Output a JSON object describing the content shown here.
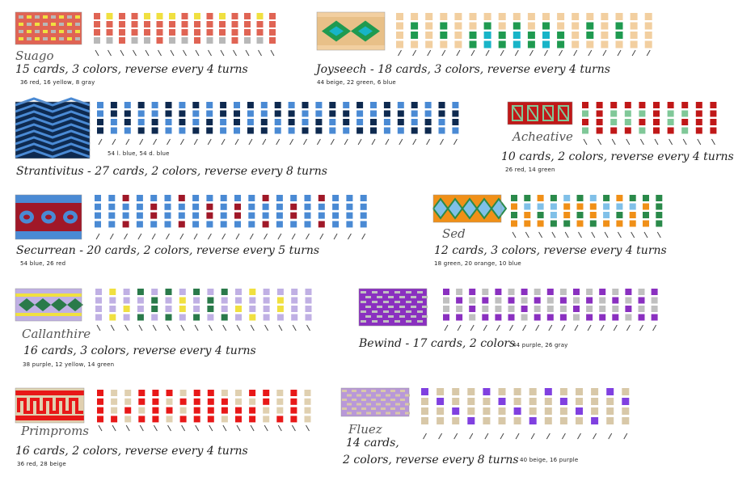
{
  "patterns": [
    {
      "id": "suago",
      "name": "Suago",
      "title_line": "15 cards, 3 colors, reverse every 4 turns",
      "counts": "36 red, 16 yellow, 8 gray",
      "colors": [
        "#e06454",
        "#f0e040",
        "#b8b8b8"
      ],
      "cards": [
        "0002",
        "1002",
        "0000",
        "0002",
        "1002",
        "1000",
        "1002",
        "0002",
        "1000",
        "0002",
        "1002",
        "0000",
        "0002",
        "1002",
        "0000"
      ],
      "threading": "\\\\\\\\\\\\\\\\\\\\\\\\\\\\\\"
    },
    {
      "id": "joyseech",
      "name": "Joyseech",
      "title_line": "Joyseech - 18 cards, 3 colors, reverse every 4 turns",
      "counts": "44 beige, 22 green, 6 blue",
      "colors": [
        "#f2cfa0",
        "#1f9a50",
        "#18b4c8"
      ],
      "cards": [
        "0000",
        "0110",
        "0000",
        "0110",
        "0000",
        "0011",
        "0122",
        "0011",
        "0122",
        "0011",
        "0122",
        "0011",
        "0000",
        "0110",
        "0000",
        "0110",
        "0000",
        "0000"
      ],
      "threading": "//////////////////"
    },
    {
      "id": "strantivitus",
      "name": "Strantivitus",
      "title_line": "Strantivitus - 27 cards, 2 colors, reverse every 8 turns",
      "counts": "54 l. blue, 54 d. blue",
      "colors": [
        "#4a8ad4",
        "#0e2a50"
      ],
      "cards": [
        "0011",
        "1100",
        "0110",
        "1001",
        "0011",
        "1100",
        "0110",
        "1001",
        "0011",
        "1100",
        "0110",
        "1001",
        "0011",
        "1100",
        "0110",
        "1001",
        "0011",
        "1100",
        "0110",
        "1001",
        "0011",
        "1100",
        "0110",
        "1001",
        "0011",
        "1100",
        "0110"
      ],
      "threading": "///////////////////////////"
    },
    {
      "id": "acheative",
      "name": "Acheative",
      "title_line": "10 cards, 2 colors, reverse every 4 turns",
      "counts": "26 red, 14 green",
      "colors": [
        "#c01818",
        "#80c898"
      ],
      "cards": [
        "0101",
        "0000",
        "0110",
        "0110",
        "0101",
        "0000",
        "0110",
        "0101",
        "0000",
        "0000"
      ],
      "threading": "\\\\\\\\\\\\\\\\\\\\"
    },
    {
      "id": "securrean",
      "name": "Securrean",
      "title_line": "Securrean - 20 cards, 2 colors, reverse every 5 turns",
      "counts": "54 blue, 26 red",
      "colors": [
        "#4a8ad4",
        "#a01828"
      ],
      "cards": [
        "0000",
        "0000",
        "1001",
        "0000",
        "0110",
        "0000",
        "1001",
        "0000",
        "0110",
        "0000",
        "0110",
        "0000",
        "1001",
        "0000",
        "0110",
        "0000",
        "1001",
        "0000",
        "0000",
        "0000"
      ],
      "threading": "////////////////////"
    },
    {
      "id": "sed",
      "name": "Sed",
      "title_line": "12 cards, 3 colors, reverse every 4 turns",
      "counts": "18 green, 20 orange, 10 blue",
      "colors": [
        "#2a8a4a",
        "#f09018",
        "#80c0e8"
      ],
      "cards": [
        "0101",
        "0211",
        "1201",
        "0220",
        "2110",
        "0101",
        "2110",
        "0221",
        "1201",
        "0211",
        "0101",
        "0000"
      ],
      "threading": "\\\\\\\\\\\\\\\\\\\\\\\\"
    },
    {
      "id": "callanthire",
      "name": "Callanthire",
      "title_line": "16 cards, 3 colors, reverse every 4 turns",
      "counts": "38 purple, 12 yellow, 14 green",
      "colors": [
        "#c0b0e4",
        "#f0e040",
        "#2a7a4a"
      ],
      "cards": [
        "0000",
        "1001",
        "0010",
        "2002",
        "0220",
        "2002",
        "0110",
        "2002",
        "0220",
        "2002",
        "0010",
        "1001",
        "0000",
        "0110",
        "0000",
        "0000"
      ],
      "threading": "\\\\\\\\\\\\\\\\\\\\\\\\\\\\\\\\"
    },
    {
      "id": "bewind",
      "name": "Bewind",
      "title_line": "Bewind - 17 cards, 2 colors",
      "counts": "44 purple, 26 gray",
      "colors": [
        "#8a30c0",
        "#c0c0c0"
      ],
      "cards": [
        "0110",
        "1010",
        "0101",
        "1010",
        "0110",
        "1010",
        "0101",
        "1010",
        "0110",
        "1010",
        "0101",
        "1010",
        "0110",
        "1010",
        "0101",
        "1010",
        "0110"
      ],
      "threading": "/////////////////"
    },
    {
      "id": "primproms",
      "name": "Primproms",
      "title_line": "16 cards, 2 colors, reverse every 4 turns",
      "counts": "36 red, 28 beige",
      "colors": [
        "#e81818",
        "#e0d0b0"
      ],
      "cards": [
        "0000",
        "1110",
        "1101",
        "0010",
        "0000",
        "0101",
        "1010",
        "0000",
        "0000",
        "1001",
        "1100",
        "0100",
        "0011",
        "1110",
        "0000",
        "1111"
      ],
      "threading": "\\\\\\\\\\\\\\\\\\\\\\\\\\\\\\\\"
    },
    {
      "id": "fluez",
      "name": "Fluez",
      "title_line_1": "14  cards,",
      "title_line_2": "2 colors,  reverse every 8 turns",
      "counts": "40 beige, 16 purple",
      "colors": [
        "#d8c8a8",
        "#8040e0"
      ],
      "cards": [
        "1000",
        "0100",
        "0010",
        "0001",
        "1000",
        "0100",
        "0010",
        "0001",
        "1000",
        "0100",
        "0010",
        "0001",
        "1000",
        "0100"
      ],
      "threading": "//////////////"
    }
  ]
}
